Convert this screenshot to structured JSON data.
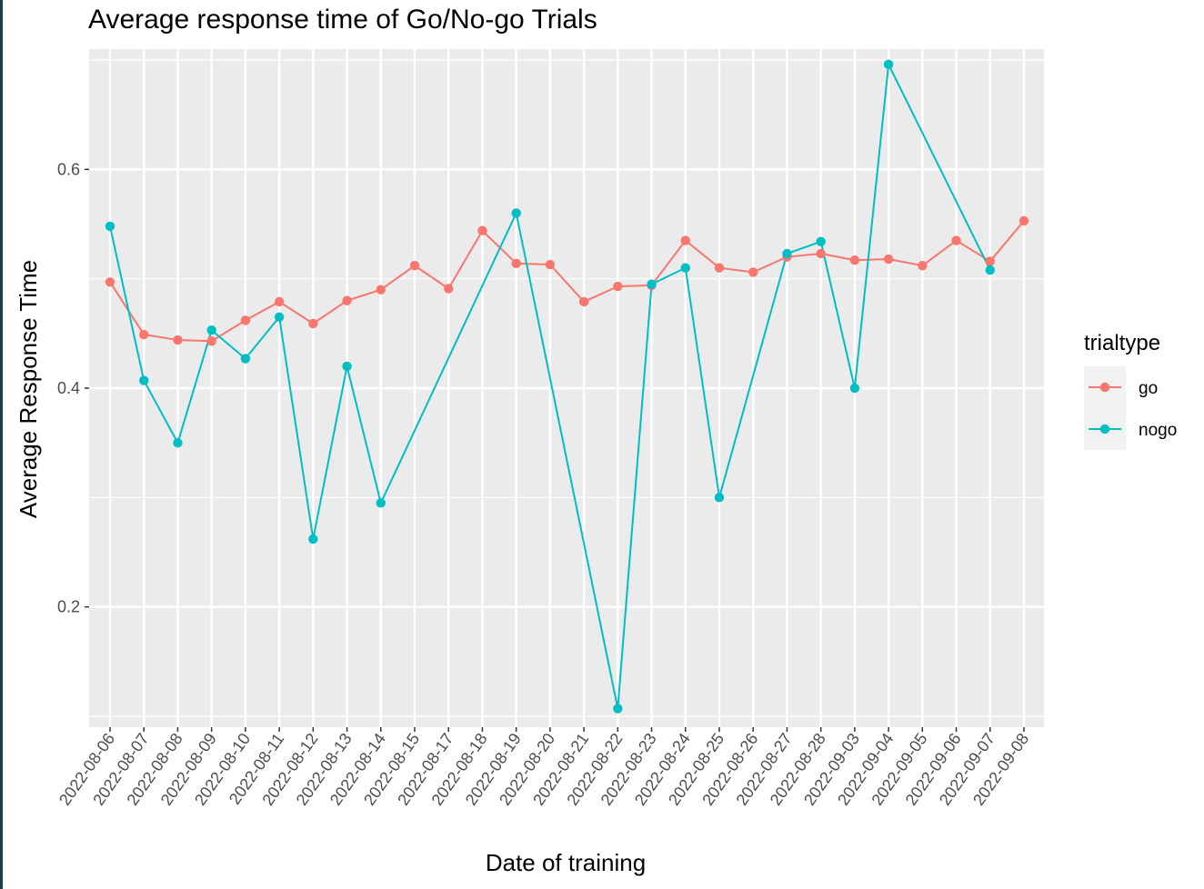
{
  "chart_data": {
    "type": "line",
    "title": "Average response time of Go/No-go Trials",
    "xlabel": "Date of training",
    "ylabel": "Average Response Time",
    "categories": [
      "2022-08-06",
      "2022-08-07",
      "2022-08-08",
      "2022-08-09",
      "2022-08-10",
      "2022-08-11",
      "2022-08-12",
      "2022-08-13",
      "2022-08-14",
      "2022-08-15",
      "2022-08-17",
      "2022-08-18",
      "2022-08-19",
      "2022-08-20",
      "2022-08-21",
      "2022-08-22",
      "2022-08-23",
      "2022-08-24",
      "2022-08-25",
      "2022-08-26",
      "2022-08-27",
      "2022-08-28",
      "2022-09-03",
      "2022-09-04",
      "2022-09-05",
      "2022-09-06",
      "2022-09-07",
      "2022-09-08"
    ],
    "ylim": [
      0.09,
      0.71
    ],
    "yticks": [
      0.2,
      0.4,
      0.6
    ],
    "ytick_labels": [
      "0.2",
      "0.4",
      "0.6"
    ],
    "grid": true,
    "legend": {
      "title": "trialtype",
      "placement": "right"
    },
    "series": [
      {
        "name": "go",
        "color": "#F8766D",
        "values": [
          0.497,
          0.449,
          0.444,
          0.443,
          0.462,
          0.479,
          0.459,
          0.48,
          0.49,
          0.512,
          0.491,
          0.544,
          0.514,
          0.513,
          0.479,
          0.493,
          0.494,
          0.535,
          0.51,
          0.506,
          0.52,
          0.523,
          0.517,
          0.518,
          0.512,
          0.535,
          0.516,
          0.553
        ]
      },
      {
        "name": "nogo",
        "color": "#00BFC4",
        "values": [
          0.548,
          0.407,
          0.35,
          0.453,
          0.427,
          0.465,
          0.262,
          0.42,
          0.295,
          null,
          null,
          null,
          0.56,
          null,
          null,
          0.107,
          0.495,
          0.51,
          0.3,
          null,
          0.523,
          0.534,
          0.4,
          0.696,
          null,
          null,
          0.508,
          null
        ]
      }
    ]
  }
}
